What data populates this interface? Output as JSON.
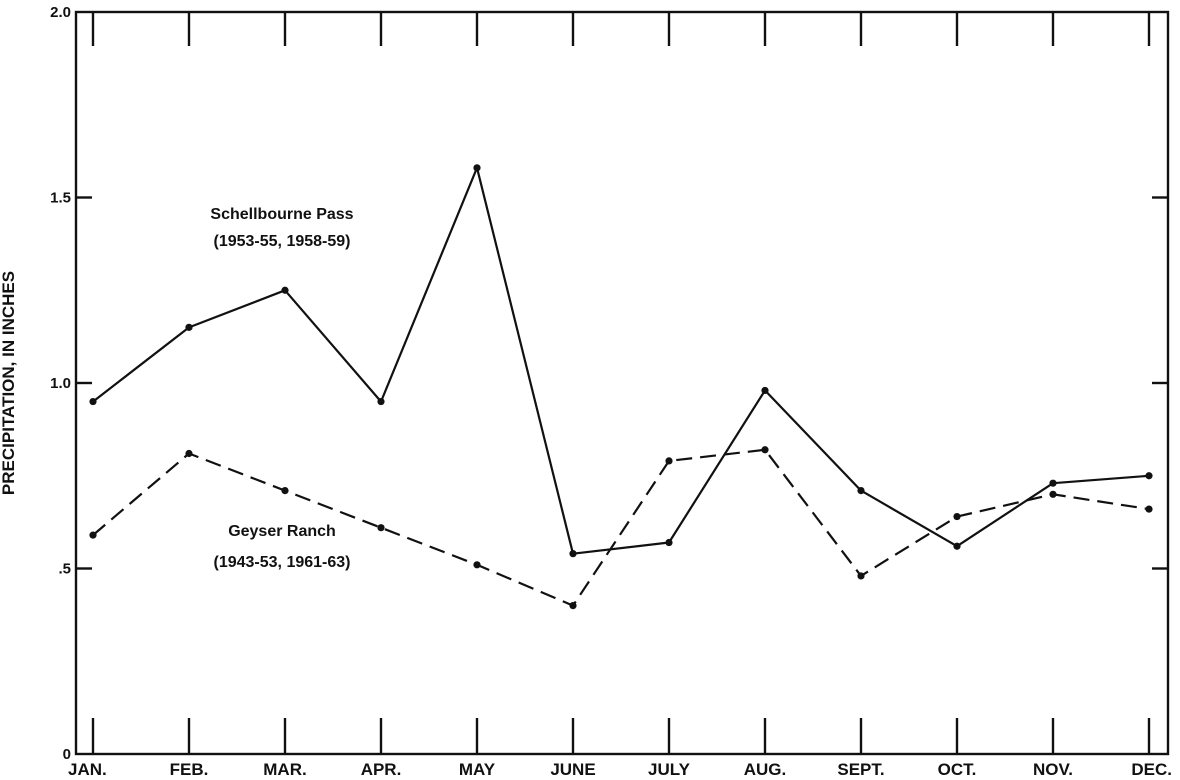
{
  "chart_data": {
    "type": "line",
    "title": "",
    "xlabel": "",
    "ylabel": "PRECIPITATION, IN INCHES",
    "ylim": [
      0,
      2.0
    ],
    "y_ticks": [
      {
        "value": 0,
        "label": "0"
      },
      {
        "value": 0.5,
        "label": ".5"
      },
      {
        "value": 1.0,
        "label": "1.0"
      },
      {
        "value": 1.5,
        "label": "1.5"
      },
      {
        "value": 2.0,
        "label": "2.0"
      }
    ],
    "categories": [
      "JAN.",
      "FEB.",
      "MAR.",
      "APR.",
      "MAY",
      "JUNE",
      "JULY",
      "AUG.",
      "SEPT.",
      "OCT.",
      "NOV.",
      "DEC."
    ],
    "grid": false,
    "legend": "none",
    "series": [
      {
        "name": "Schellbourne Pass",
        "period": "(1953-55, 1958-59)",
        "style": "solid",
        "color": "#111111",
        "values": [
          0.95,
          1.15,
          1.25,
          0.95,
          1.58,
          0.54,
          0.57,
          0.98,
          0.71,
          0.56,
          0.73,
          0.75
        ]
      },
      {
        "name": "Geyser Ranch",
        "period": "(1943-53, 1961-63)",
        "style": "dashed",
        "color": "#111111",
        "values": [
          0.59,
          0.81,
          0.71,
          0.61,
          0.51,
          0.4,
          0.79,
          0.82,
          0.48,
          0.64,
          0.7,
          0.66
        ]
      }
    ]
  }
}
